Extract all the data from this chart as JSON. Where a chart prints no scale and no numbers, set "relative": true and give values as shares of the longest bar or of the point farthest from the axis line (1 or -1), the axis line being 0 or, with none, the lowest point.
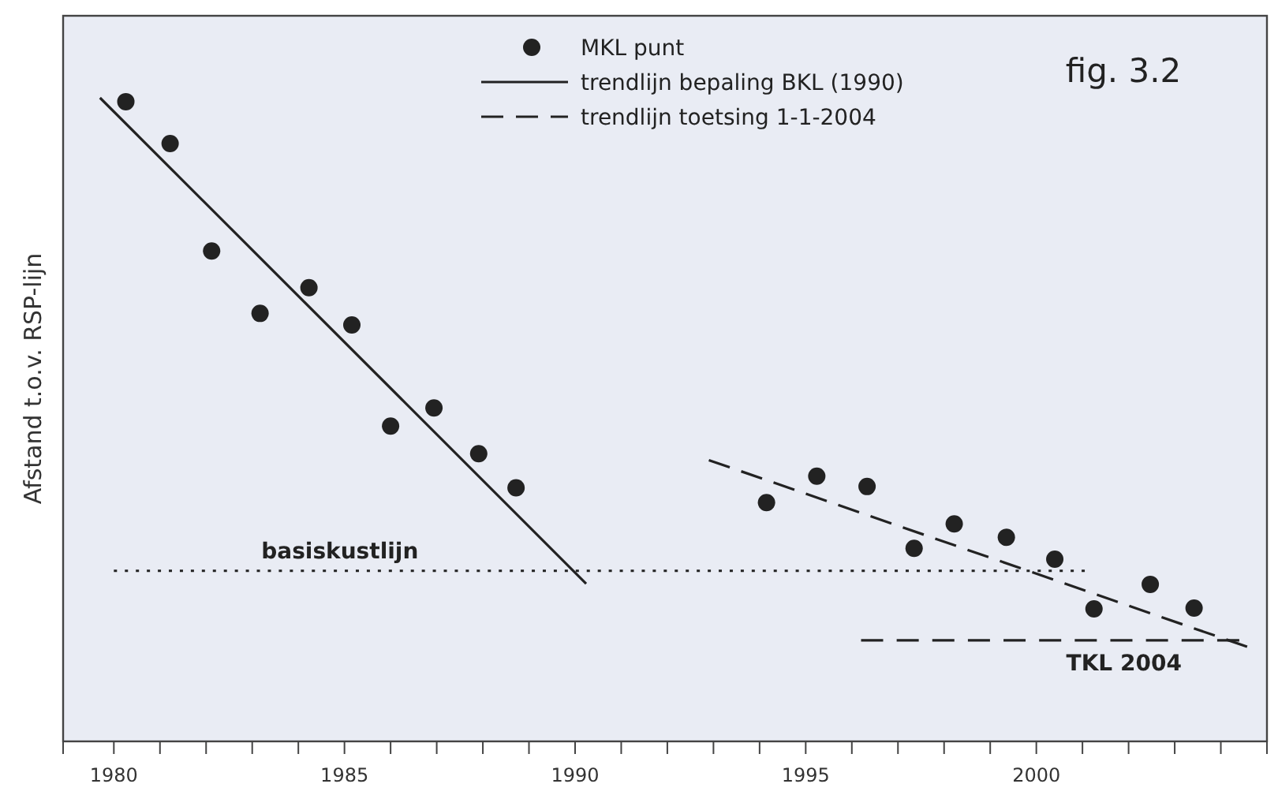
{
  "chart_data": {
    "type": "scatter",
    "title": "fig.  3.2",
    "ylabel": "Afstand t.o.v. RSP-lijn",
    "relative": true,
    "xlim": [
      1978.9,
      2005
    ],
    "xticks": [
      {
        "value": 1980,
        "label": "1980"
      },
      {
        "value": 1981,
        "label": null
      },
      {
        "value": 1982,
        "label": null
      },
      {
        "value": 1983,
        "label": null
      },
      {
        "value": 1984,
        "label": null
      },
      {
        "value": 1985,
        "label": "1985"
      },
      {
        "value": 1986,
        "label": null
      },
      {
        "value": 1987,
        "label": null
      },
      {
        "value": 1988,
        "label": null
      },
      {
        "value": 1989,
        "label": null
      },
      {
        "value": 1990,
        "label": "1990"
      },
      {
        "value": 1991,
        "label": null
      },
      {
        "value": 1992,
        "label": null
      },
      {
        "value": 1993,
        "label": null
      },
      {
        "value": 1994,
        "label": null
      },
      {
        "value": 1995,
        "label": "1995"
      },
      {
        "value": 1996,
        "label": null
      },
      {
        "value": 1997,
        "label": null
      },
      {
        "value": 1998,
        "label": null
      },
      {
        "value": 1999,
        "label": null
      },
      {
        "value": 2000,
        "label": "2000"
      },
      {
        "value": 2001,
        "label": null
      },
      {
        "value": 2002,
        "label": null
      },
      {
        "value": 2003,
        "label": null
      },
      {
        "value": 2004,
        "label": null
      }
    ],
    "tick_labels": "x",
    "legend": "top",
    "grid": false,
    "series": [
      {
        "name": "MKL punt",
        "marker": "circle",
        "color": "#222222",
        "x": [
          1980.26,
          1981.22,
          1982.12,
          1983.17,
          1984.23,
          1985.16,
          1986.0,
          1986.94,
          1987.91,
          1988.72,
          1994.15,
          1995.24,
          1996.33,
          1997.35,
          1998.22,
          1999.35,
          2000.4,
          2001.25,
          2002.47,
          2003.42
        ],
        "values": [
          0.994,
          0.929,
          0.762,
          0.665,
          0.705,
          0.647,
          0.49,
          0.518,
          0.447,
          0.394,
          0.371,
          0.412,
          0.396,
          0.3,
          0.338,
          0.317,
          0.283,
          0.206,
          0.244,
          0.207
        ]
      },
      {
        "name": "trendlijn bepaling BKL (1990)",
        "type": "line",
        "line_style": "solid",
        "marker": "none",
        "color": "#222222",
        "x": [
          1979.7,
          1990.24
        ],
        "values": [
          1,
          0.245
        ]
      },
      {
        "name": "trendlijn toetsing  1-1-2004",
        "type": "line",
        "line_style": "dashed",
        "marker": "none",
        "color": "#222222",
        "x": [
          1992.9,
          2004.57
        ],
        "values": [
          0.437,
          0.147
        ]
      },
      {
        "type": "line",
        "line_style": "dotted",
        "marker": "none",
        "color": "#222222",
        "x": [
          1980,
          2001.05
        ],
        "values": [
          0.265,
          0.265
        ]
      },
      {
        "type": "line",
        "line_style": "dashed",
        "marker": "none",
        "color": "#222222",
        "x": [
          1996.2,
          2004.4
        ],
        "values": [
          0.157,
          0.157
        ]
      }
    ],
    "annotations": [
      {
        "text": "basiskustlijn",
        "x": 1984.9,
        "y": 0.265
      },
      {
        "text": "TKL 2004",
        "x": 2001.9,
        "y": 0.157
      }
    ]
  }
}
